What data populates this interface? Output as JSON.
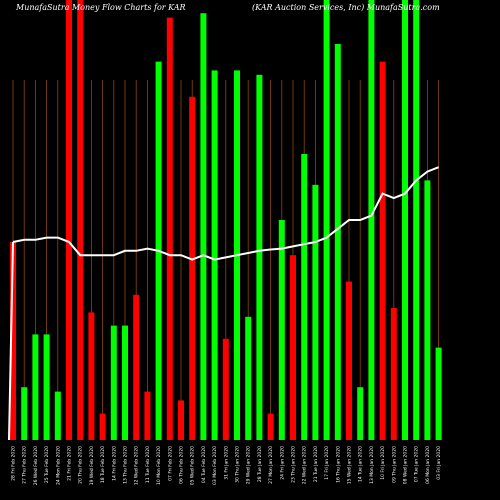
{
  "header": {
    "left": "MunafaSutra  Money Flow  Charts for KAR",
    "right": "(KAR Auction  Services, Inc) MunafaSutra.com"
  },
  "colors": {
    "background": "#000000",
    "up": "#00ff00",
    "down": "#ff0000",
    "grid": "#8b4513",
    "line": "#ffffff",
    "text": "#ffffff"
  },
  "chart_data": {
    "type": "bar",
    "title": "MunafaSutra  Money Flow  Charts for KAR  (KAR Auction  Services, Inc) MunafaSutra.com",
    "categories": [
      "28 Fri Feb 2020",
      "27 Thu Feb 2020",
      "26 Wed Feb 2020",
      "25 Tue Feb 2020",
      "24 Mon Feb 2020",
      "21 Fri Feb 2020",
      "20 Thu Feb 2020",
      "19 Wed Feb 2020",
      "18 Tue Feb 2020",
      "14 Fri Feb 2020",
      "13 Thu Feb 2020",
      "12 Wed Feb 2020",
      "11 Tue Feb 2020",
      "10 Mon Feb 2020",
      "07 Fri Feb 2020",
      "06 Thu Feb 2020",
      "05 Wed Feb 2020",
      "04 Tue Feb 2020",
      "03 Mon Feb 2020",
      "31 Fri Jan 2020",
      "30 Thu Jan 2020",
      "29 Wed Jan 2020",
      "28 Tue Jan 2020",
      "27 Mon Jan 2020",
      "24 Fri Jan 2020",
      "23 Thu Jan 2020",
      "22 Wed Jan 2020",
      "21 Tue Jan 2020",
      "17 Fri Jan 2020",
      "16 Thu Jan 2020",
      "15 Wed Jan 2020",
      "14 Tue Jan 2020",
      "13 Mon Jan 2020",
      "10 Fri Jan 2020",
      "09 Thu Jan 2020",
      "08 Wed Jan 2020",
      "07 Tue Jan 2020",
      "06 Mon Jan 2020",
      "03 Fri Jan 2020"
    ],
    "series": [
      {
        "values": [
          45,
          12,
          24,
          24,
          11,
          100,
          100,
          29,
          6,
          26,
          26,
          33,
          11,
          86,
          96,
          9,
          78,
          97,
          84,
          23,
          84,
          28,
          83,
          6,
          50,
          42,
          65,
          58,
          100,
          90,
          36,
          12,
          100,
          86,
          30,
          100,
          100,
          59,
          21
        ],
        "direction": [
          "down",
          "up",
          "up",
          "up",
          "up",
          "down",
          "down",
          "down",
          "down",
          "up",
          "up",
          "down",
          "down",
          "up",
          "down",
          "down",
          "down",
          "up",
          "up",
          "down",
          "up",
          "up",
          "up",
          "down",
          "up",
          "down",
          "up",
          "up",
          "up",
          "up",
          "down",
          "up",
          "up",
          "down",
          "down",
          "up",
          "up",
          "up",
          "up"
        ]
      },
      {
        "values": [
          45,
          45.5,
          45.5,
          46,
          46,
          45,
          42,
          42,
          42,
          42,
          43,
          43,
          43.5,
          43,
          42,
          42,
          41,
          42,
          41,
          41.5,
          42,
          42.5,
          43,
          43.3,
          43.5,
          44,
          44.5,
          45,
          46,
          48,
          50,
          50,
          51,
          56,
          55,
          56,
          59,
          61,
          62
        ]
      }
    ],
    "ylim": [
      0,
      100
    ],
    "grid": true
  }
}
